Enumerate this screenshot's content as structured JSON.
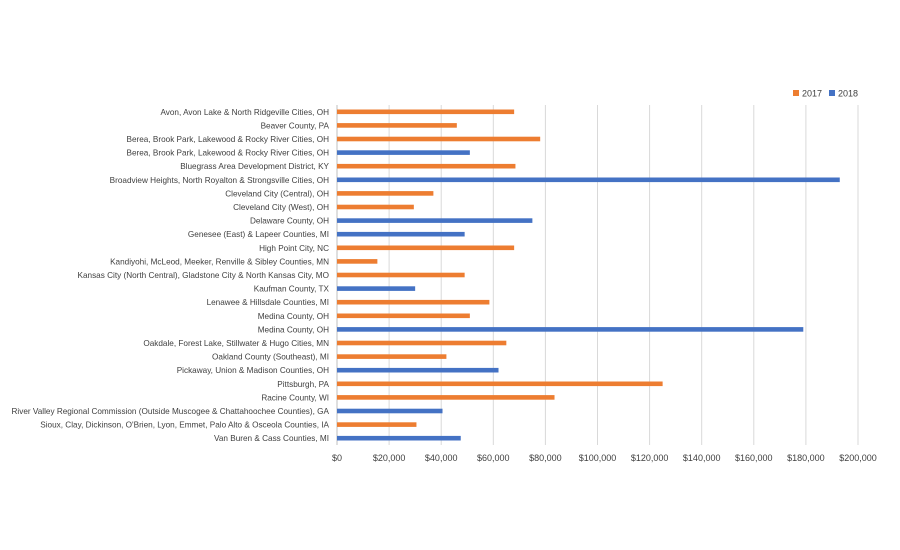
{
  "chart_data": {
    "type": "bar",
    "orientation": "horizontal",
    "title": "",
    "xlabel": "",
    "ylabel": "",
    "xlim": [
      0,
      200000
    ],
    "x_ticks": [
      {
        "value": 0,
        "label": "$0"
      },
      {
        "value": 20000,
        "label": "$20,000"
      },
      {
        "value": 40000,
        "label": "$40,000"
      },
      {
        "value": 60000,
        "label": "$60,000"
      },
      {
        "value": 80000,
        "label": "$80,000"
      },
      {
        "value": 100000,
        "label": "$100,000"
      },
      {
        "value": 120000,
        "label": "$120,000"
      },
      {
        "value": 140000,
        "label": "$140,000"
      },
      {
        "value": 160000,
        "label": "$160,000"
      },
      {
        "value": 180000,
        "label": "$180,000"
      },
      {
        "value": 200000,
        "label": "$200,000"
      }
    ],
    "grid": "vertical",
    "legend_position": "top-right",
    "series_meta": [
      {
        "key": "2017",
        "name": "2017",
        "color": "#ed7d31"
      },
      {
        "key": "2018",
        "name": "2018",
        "color": "#4472c4"
      }
    ],
    "rows": [
      {
        "label": "Avon, Avon Lake & North Ridgeville Cities, OH",
        "series": "2017",
        "value": 68000
      },
      {
        "label": "Beaver County, PA",
        "series": "2017",
        "value": 46000
      },
      {
        "label": "Berea, Brook Park, Lakewood & Rocky River Cities, OH",
        "series": "2017",
        "value": 78000
      },
      {
        "label": "Berea, Brook Park, Lakewood & Rocky River Cities, OH",
        "series": "2018",
        "value": 51000
      },
      {
        "label": "Bluegrass Area Development District, KY",
        "series": "2017",
        "value": 68500
      },
      {
        "label": "Broadview Heights, North Royalton & Strongsville Cities, OH",
        "series": "2018",
        "value": 193000
      },
      {
        "label": "Cleveland City (Central), OH",
        "series": "2017",
        "value": 37000
      },
      {
        "label": "Cleveland City (West), OH",
        "series": "2017",
        "value": 29500
      },
      {
        "label": "Delaware County, OH",
        "series": "2018",
        "value": 75000
      },
      {
        "label": "Genesee (East) & Lapeer Counties, MI",
        "series": "2018",
        "value": 49000
      },
      {
        "label": "High Point City, NC",
        "series": "2017",
        "value": 68000
      },
      {
        "label": "Kandiyohi, McLeod, Meeker, Renville & Sibley Counties, MN",
        "series": "2017",
        "value": 15500
      },
      {
        "label": "Kansas City (North Central), Gladstone City & North Kansas City, MO",
        "series": "2017",
        "value": 49000
      },
      {
        "label": "Kaufman County, TX",
        "series": "2018",
        "value": 30000
      },
      {
        "label": "Lenawee & Hillsdale Counties, MI",
        "series": "2017",
        "value": 58500
      },
      {
        "label": "Medina County, OH",
        "series": "2017",
        "value": 51000
      },
      {
        "label": "Medina County, OH",
        "series": "2018",
        "value": 179000
      },
      {
        "label": "Oakdale, Forest Lake, Stillwater & Hugo Cities, MN",
        "series": "2017",
        "value": 65000
      },
      {
        "label": "Oakland County (Southeast), MI",
        "series": "2017",
        "value": 42000
      },
      {
        "label": "Pickaway, Union & Madison Counties, OH",
        "series": "2018",
        "value": 62000
      },
      {
        "label": "Pittsburgh, PA",
        "series": "2017",
        "value": 125000
      },
      {
        "label": "Racine County, WI",
        "series": "2017",
        "value": 83500
      },
      {
        "label": "River Valley Regional Commission (Outside Muscogee & Chattahoochee Counties), GA",
        "series": "2018",
        "value": 40500
      },
      {
        "label": "Sioux, Clay, Dickinson, O'Brien, Lyon, Emmet, Palo Alto & Osceola Counties, IA",
        "series": "2017",
        "value": 30500
      },
      {
        "label": "Van Buren & Cass Counties, MI",
        "series": "2018",
        "value": 47500
      }
    ]
  }
}
